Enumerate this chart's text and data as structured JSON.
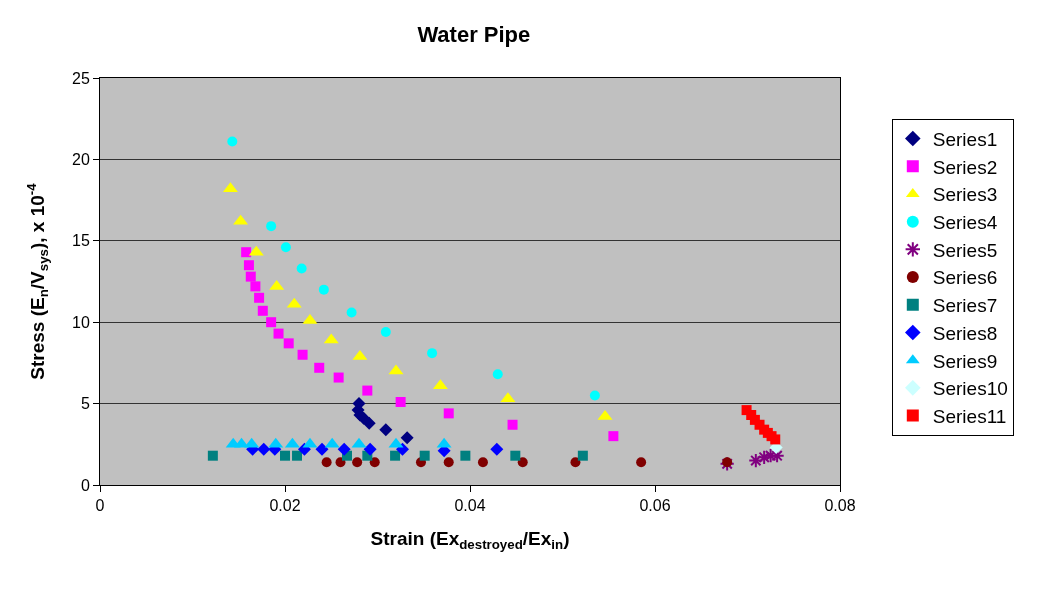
{
  "chart_data": {
    "type": "scatter",
    "title": "Water Pipe",
    "xlabel": "Strain (Ex$_{destroyed}$/Ex$_{in}$)",
    "ylabel": "Stress (E$_{n}$/V$_{sys}$), x 10$^{-4}$",
    "xlim": [
      0,
      0.08
    ],
    "xticks": [
      0,
      0.02,
      0.04,
      0.06,
      0.08
    ],
    "ylim": [
      0,
      25
    ],
    "yticks": [
      0,
      5,
      10,
      15,
      20,
      25
    ],
    "grid": "y",
    "legend": "right",
    "series": [
      {
        "name": "Series1",
        "color": "#000080",
        "marker": "diamond",
        "x": [
          0.028,
          0.0279,
          0.0281,
          0.0285,
          0.0291,
          0.0309,
          0.0332
        ],
        "values": [
          5.0,
          4.6,
          4.3,
          4.1,
          3.8,
          3.4,
          2.9
        ]
      },
      {
        "name": "Series2",
        "color": "#ff00ff",
        "marker": "square",
        "x": [
          0.0158,
          0.0161,
          0.0163,
          0.0168,
          0.0172,
          0.0176,
          0.0185,
          0.0193,
          0.0204,
          0.0219,
          0.0237,
          0.0258,
          0.0289,
          0.0325,
          0.0377,
          0.0446,
          0.0555
        ],
        "values": [
          14.3,
          13.5,
          12.8,
          12.2,
          11.5,
          10.7,
          10.0,
          9.3,
          8.7,
          8.0,
          7.2,
          6.6,
          5.8,
          5.1,
          4.4,
          3.7,
          3.0
        ]
      },
      {
        "name": "Series3",
        "color": "#ffff00",
        "marker": "triangle",
        "x": [
          0.0141,
          0.0152,
          0.0169,
          0.0191,
          0.021,
          0.0227,
          0.025,
          0.0281,
          0.032,
          0.0368,
          0.0441,
          0.0546
        ],
        "values": [
          18.2,
          16.2,
          14.3,
          12.2,
          11.1,
          10.1,
          8.9,
          7.9,
          7.0,
          6.1,
          5.3,
          4.2
        ]
      },
      {
        "name": "Series4",
        "color": "#00ffff",
        "marker": "circle",
        "x": [
          0.0143,
          0.0185,
          0.0201,
          0.0218,
          0.0242,
          0.0272,
          0.0309,
          0.0359,
          0.043,
          0.0535
        ],
        "values": [
          21.1,
          15.9,
          14.6,
          13.3,
          12.0,
          10.6,
          9.4,
          8.1,
          6.8,
          5.5
        ]
      },
      {
        "name": "Series5",
        "color": "#800080",
        "marker": "cross",
        "x": [
          0.0678,
          0.0709,
          0.0718,
          0.0725,
          0.0732
        ],
        "values": [
          1.3,
          1.5,
          1.7,
          1.8,
          1.8
        ]
      },
      {
        "name": "Series6",
        "color": "#800000",
        "marker": "circle",
        "x": [
          0.0245,
          0.026,
          0.0278,
          0.0297,
          0.0347,
          0.0377,
          0.0414,
          0.0457,
          0.0514,
          0.0585,
          0.0678
        ],
        "values": [
          1.4,
          1.4,
          1.4,
          1.4,
          1.4,
          1.4,
          1.4,
          1.4,
          1.4,
          1.4,
          1.4
        ]
      },
      {
        "name": "Series7",
        "color": "#008080",
        "marker": "square",
        "x": [
          0.0122,
          0.02,
          0.0213,
          0.0267,
          0.0289,
          0.0319,
          0.0351,
          0.0395,
          0.0449,
          0.0522
        ],
        "values": [
          1.8,
          1.8,
          1.8,
          1.8,
          1.8,
          1.8,
          1.8,
          1.8,
          1.8,
          1.8
        ]
      },
      {
        "name": "Series8",
        "color": "#0000ff",
        "marker": "diamond",
        "x": [
          0.0165,
          0.0177,
          0.0189,
          0.0221,
          0.024,
          0.0264,
          0.0292,
          0.0327,
          0.0372,
          0.0429
        ],
        "values": [
          2.2,
          2.2,
          2.2,
          2.2,
          2.2,
          2.2,
          2.2,
          2.2,
          2.1,
          2.2
        ]
      },
      {
        "name": "Series9",
        "color": "#00ccff",
        "marker": "triangle",
        "x": [
          0.0144,
          0.0153,
          0.0164,
          0.019,
          0.0208,
          0.0227,
          0.0251,
          0.028,
          0.032,
          0.0372
        ],
        "values": [
          2.5,
          2.5,
          2.5,
          2.5,
          2.5,
          2.5,
          2.5,
          2.5,
          2.5,
          2.5
        ]
      },
      {
        "name": "Series10",
        "color": "#ccffff",
        "marker": "diamond",
        "x": [
          0.0731
        ],
        "values": [
          2.3
        ]
      },
      {
        "name": "Series11",
        "color": "#ff0000",
        "marker": "square",
        "x": [
          0.0699,
          0.0704,
          0.0708,
          0.0713,
          0.0718,
          0.0722,
          0.0726,
          0.073
        ],
        "values": [
          4.6,
          4.3,
          4.0,
          3.7,
          3.4,
          3.2,
          3.0,
          2.8
        ]
      }
    ]
  }
}
